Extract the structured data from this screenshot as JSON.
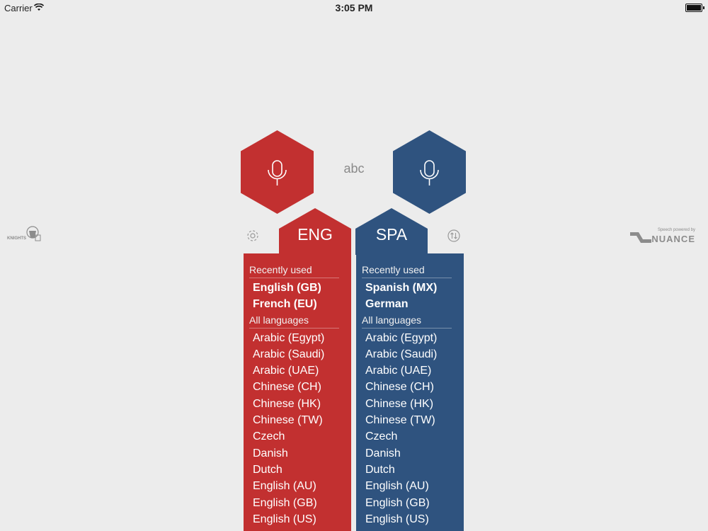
{
  "status_bar": {
    "carrier": "Carrier",
    "time": "3:05 PM"
  },
  "center_label": "abc",
  "left": {
    "code": "ENG",
    "color": "#c23030",
    "recent_header": "Recently used",
    "recent": [
      "English (GB)",
      "French (EU)"
    ],
    "all_header": "All languages",
    "languages": [
      "Arabic (Egypt)",
      "Arabic (Saudi)",
      "Arabic (UAE)",
      "Chinese (CH)",
      "Chinese (HK)",
      "Chinese (TW)",
      "Czech",
      "Danish",
      "Dutch",
      "English (AU)",
      "English (GB)",
      "English (US)"
    ]
  },
  "right": {
    "code": "SPA",
    "color": "#2f537f",
    "recent_header": "Recently used",
    "recent": [
      "Spanish (MX)",
      "German"
    ],
    "all_header": "All languages",
    "languages": [
      "Arabic (Egypt)",
      "Arabic (Saudi)",
      "Arabic (UAE)",
      "Chinese (CH)",
      "Chinese (HK)",
      "Chinese (TW)",
      "Czech",
      "Danish",
      "Dutch",
      "English (AU)",
      "English (GB)",
      "English (US)"
    ]
  },
  "logos": {
    "left_brand": "KNIGHTS",
    "right_caption": "Speech powered by",
    "right_brand": "NUANCE"
  },
  "icons": {
    "mic": "microphone-icon",
    "settings": "gear-icon",
    "swap": "swap-arrows-icon"
  }
}
